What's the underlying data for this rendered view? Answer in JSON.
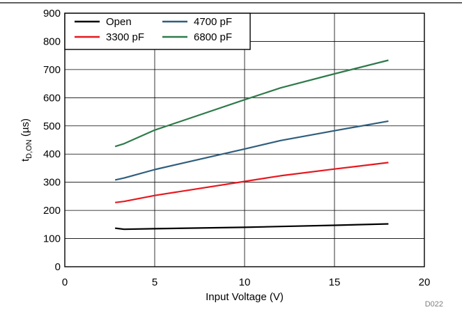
{
  "chart_data": {
    "type": "line",
    "ylabel_main": "t",
    "ylabel_sub": "D,ON",
    "ylabel_unit": " (µs)",
    "xlabel": "Input Voltage (V)",
    "xlim": [
      0,
      20
    ],
    "ylim": [
      0,
      900
    ],
    "xticks": [
      0,
      5,
      10,
      15,
      20
    ],
    "yticks": [
      0,
      100,
      200,
      300,
      400,
      500,
      600,
      700,
      800,
      900
    ],
    "grid": true,
    "legend_position": "top-left",
    "figure_id": "D022",
    "series": [
      {
        "name": "Open",
        "color": "#000000",
        "x": [
          2.8,
          3.3,
          5,
          10,
          12,
          15,
          18
        ],
        "y": [
          137,
          133,
          135,
          140,
          143,
          147,
          152
        ]
      },
      {
        "name": "3300 pF",
        "color": "#e8171f",
        "x": [
          2.8,
          3.3,
          5,
          10,
          12,
          15,
          18
        ],
        "y": [
          228,
          232,
          253,
          303,
          323,
          347,
          370
        ]
      },
      {
        "name": "4700 pF",
        "color": "#2f5e7d",
        "x": [
          2.8,
          3.3,
          5,
          10,
          12,
          15,
          18
        ],
        "y": [
          308,
          315,
          345,
          418,
          448,
          483,
          517
        ]
      },
      {
        "name": "6800 pF",
        "color": "#2e7a4a",
        "x": [
          2.8,
          3.3,
          5,
          10,
          12,
          15,
          18
        ],
        "y": [
          427,
          437,
          485,
          593,
          635,
          685,
          733
        ]
      }
    ]
  }
}
